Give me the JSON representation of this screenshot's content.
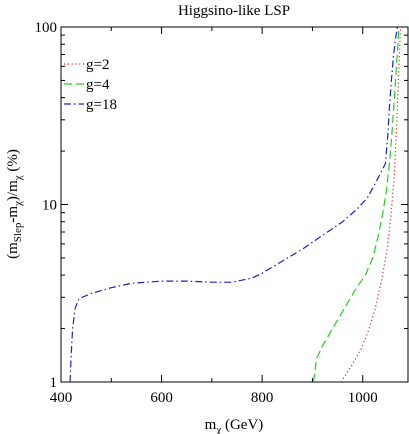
{
  "chart_data": {
    "type": "line",
    "title": "Higgsino-like LSP",
    "xlabel": {
      "base": "m",
      "sub": "χ",
      "tail": " (GeV)"
    },
    "ylabel": {
      "parts": [
        {
          "t": "(m",
          "s": ""
        },
        {
          "t": "Slep",
          "s": "sub"
        },
        {
          "t": "-m",
          "s": ""
        },
        {
          "t": "χ",
          "s": "sub"
        },
        {
          "t": ")/m",
          "s": ""
        },
        {
          "t": "χ",
          "s": "sub"
        },
        {
          "t": " (%)",
          "s": ""
        }
      ]
    },
    "xlim": [
      400,
      1090
    ],
    "ylim": [
      1,
      100
    ],
    "yscale": "log",
    "xticks": [
      400,
      600,
      800,
      1000
    ],
    "xtick_labels": [
      "400",
      "600",
      "800",
      "1000"
    ],
    "yticks": [
      1,
      10,
      100
    ],
    "ytick_labels": [
      "1",
      "10",
      "100"
    ],
    "legend_position": "top-left",
    "series": [
      {
        "name": "g=2",
        "color": "#e8231f",
        "dash": "1.2,2.6",
        "x": [
          957,
          975,
          995,
          1010,
          1025,
          1038,
          1048,
          1056,
          1063,
          1068,
          1072,
          1075
        ],
        "y": [
          1.0,
          1.2,
          1.5,
          1.9,
          2.6,
          3.8,
          5.5,
          8.5,
          15,
          30,
          60,
          100
        ]
      },
      {
        "name": "g=4",
        "color": "#1dd11d",
        "dash": "8,4",
        "x": [
          902,
          908,
          920,
          940,
          960,
          985,
          1005,
          1020,
          1030,
          1040,
          1047,
          1053,
          1058,
          1063,
          1068,
          1072
        ],
        "y": [
          1.0,
          1.35,
          1.6,
          2.0,
          2.5,
          3.3,
          4.0,
          5.0,
          6.5,
          9.0,
          12,
          17,
          25,
          40,
          65,
          100
        ]
      },
      {
        "name": "g=18",
        "color": "#1b21c9",
        "dash": "7,3,1.5,3",
        "x": [
          418,
          420,
          423,
          428,
          436,
          460,
          500,
          540,
          600,
          650,
          700,
          740,
          780,
          800,
          840,
          880,
          920,
          960,
          990,
          1010,
          1030,
          1045,
          1050,
          1053,
          1057,
          1061,
          1065,
          1069
        ],
        "y": [
          1.0,
          1.4,
          2.0,
          2.6,
          2.95,
          3.15,
          3.4,
          3.6,
          3.7,
          3.7,
          3.65,
          3.65,
          3.85,
          4.1,
          4.8,
          5.6,
          6.7,
          8.0,
          9.5,
          11,
          14,
          17,
          25,
          35,
          50,
          68,
          85,
          100
        ]
      }
    ]
  }
}
